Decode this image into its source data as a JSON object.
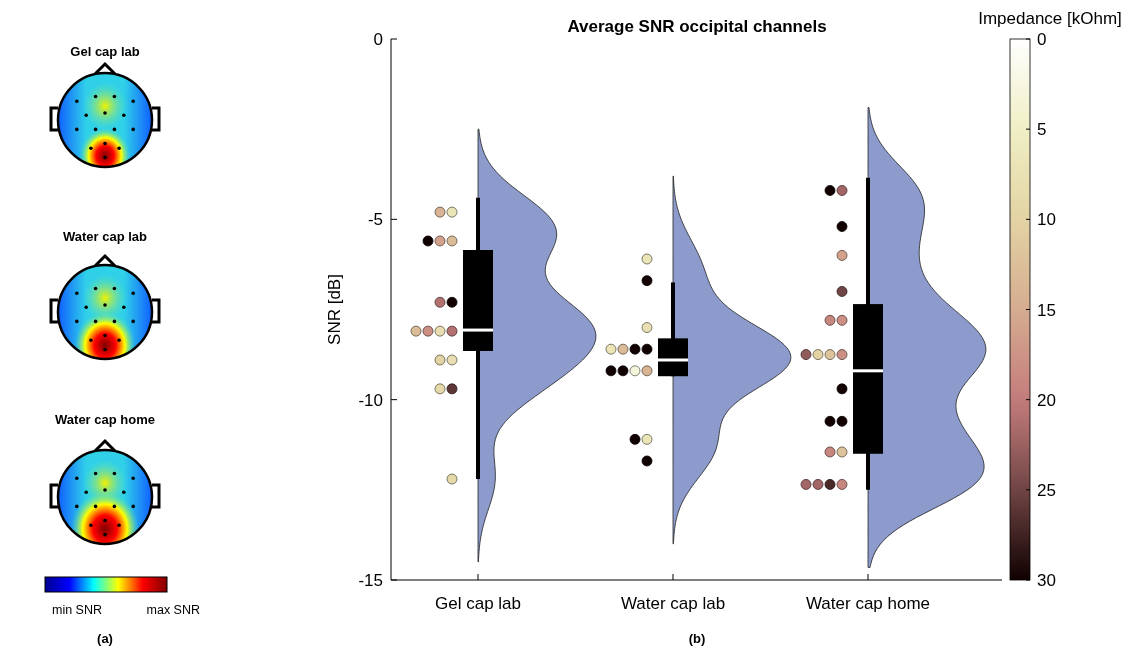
{
  "chart_data": [
    {
      "type": "other",
      "categories": [
        "Gel cap lab",
        "Water cap lab",
        "Water cap home"
      ],
      "annotations": [
        "min SNR",
        "max SNR",
        "(a)"
      ]
    },
    {
      "type": "box",
      "title": "Average SNR occipital channels",
      "ylabel": "SNR [dB]",
      "clabel": "Impedance [kOhm]",
      "annotations": [
        "(b)"
      ],
      "categories": [
        "Gel cap lab",
        "Water cap lab",
        "Water cap home"
      ],
      "ylim": [
        -15,
        0
      ],
      "yticks": [
        -15,
        -10,
        -5,
        0
      ],
      "clim": [
        30,
        0
      ],
      "cticks": [
        0,
        5,
        10,
        15,
        20,
        25,
        30
      ],
      "grid": false,
      "series": [
        {
          "type": "box",
          "color": "#000000",
          "boxes": [
            {
              "low": -12.2,
              "q1": -8.65,
              "median": -8.07,
              "q3": -5.85,
              "high": -4.4
            },
            {
              "low": -9.35,
              "q1": -9.35,
              "median": -8.9,
              "q3": -8.3,
              "high": -6.75
            },
            {
              "low": -12.5,
              "q1": -11.5,
              "median": -9.2,
              "q3": -7.35,
              "high": -3.85
            }
          ]
        },
        {
          "type": "scatter",
          "marker": "circle",
          "x": [
            "Gel cap lab",
            "Gel cap lab",
            "Gel cap lab",
            "Gel cap lab",
            "Gel cap lab",
            "Gel cap lab",
            "Gel cap lab",
            "Gel cap lab",
            "Gel cap lab",
            "Gel cap lab",
            "Gel cap lab",
            "Gel cap lab",
            "Gel cap lab",
            "Gel cap lab",
            "Gel cap lab",
            "Gel cap lab",
            "Water cap lab",
            "Water cap lab",
            "Water cap lab",
            "Water cap lab",
            "Water cap lab",
            "Water cap lab",
            "Water cap lab",
            "Water cap lab",
            "Water cap lab",
            "Water cap lab",
            "Water cap lab",
            "Water cap lab",
            "Water cap lab",
            "Water cap lab",
            "Water cap home",
            "Water cap home",
            "Water cap home",
            "Water cap home",
            "Water cap home",
            "Water cap home",
            "Water cap home",
            "Water cap home",
            "Water cap home",
            "Water cap home",
            "Water cap home",
            "Water cap home",
            "Water cap home",
            "Water cap home",
            "Water cap home",
            "Water cap home",
            "Water cap home",
            "Water cap home",
            "Water cap home",
            "Water cap home"
          ],
          "values": [
            -4.8,
            -4.8,
            -5.6,
            -5.6,
            -5.6,
            -7.3,
            -7.3,
            -8.1,
            -8.1,
            -8.1,
            -8.1,
            -8.9,
            -8.9,
            -9.7,
            -9.7,
            -12.2,
            -6.1,
            -6.7,
            -8.0,
            -8.6,
            -8.6,
            -8.6,
            -8.6,
            -9.2,
            -9.2,
            -9.2,
            -9.2,
            -11.1,
            -11.1,
            -11.7,
            -4.2,
            -4.2,
            -5.2,
            -6.0,
            -7.0,
            -7.8,
            -7.8,
            -8.75,
            -8.75,
            -8.75,
            -8.75,
            -9.7,
            -10.6,
            -10.6,
            -11.45,
            -11.45,
            -12.35,
            -12.35,
            -12.35,
            -12.35
          ],
          "colors": [
            "#eae4b7",
            "#d8b494",
            "#dbbc98",
            "#d2a28c",
            "#100000",
            "#100000",
            "#b37171",
            "#b37171",
            "#e8deb1",
            "#cb8f84",
            "#dbbc98",
            "#e8deb1",
            "#e3d3a4",
            "#5e3737",
            "#e5d9aa",
            "#e5d9aa",
            "#eae4b7",
            "#100000",
            "#e8deb1",
            "#100000",
            "#100000",
            "#dbbc98",
            "#eae4b7",
            "#d8b494",
            "#f5f5dc",
            "#100000",
            "#100000",
            "#eae4b7",
            "#100000",
            "#100000",
            "#a36666",
            "#100000",
            "#100000",
            "#d2a28c",
            "#714545",
            "#cb8f84",
            "#c78680",
            "#cb8f84",
            "#ddc39c",
            "#e3d3a4",
            "#925b5b",
            "#100000",
            "#100000",
            "#100000",
            "#ddc39c",
            "#c78680",
            "#c78680",
            "#4a2929",
            "#a36666",
            "#a36666"
          ],
          "cvalues": [
            7,
            14,
            13,
            16,
            30,
            30,
            21,
            21,
            8,
            18,
            13,
            8,
            10,
            26,
            9,
            9,
            7,
            30,
            8,
            30,
            30,
            13,
            7,
            14,
            3,
            30,
            30,
            7,
            30,
            30,
            22,
            30,
            30,
            16,
            25,
            18,
            19,
            18,
            12,
            10,
            23,
            30,
            30,
            30,
            12,
            19,
            19,
            27,
            22,
            22
          ]
        }
      ]
    }
  ]
}
